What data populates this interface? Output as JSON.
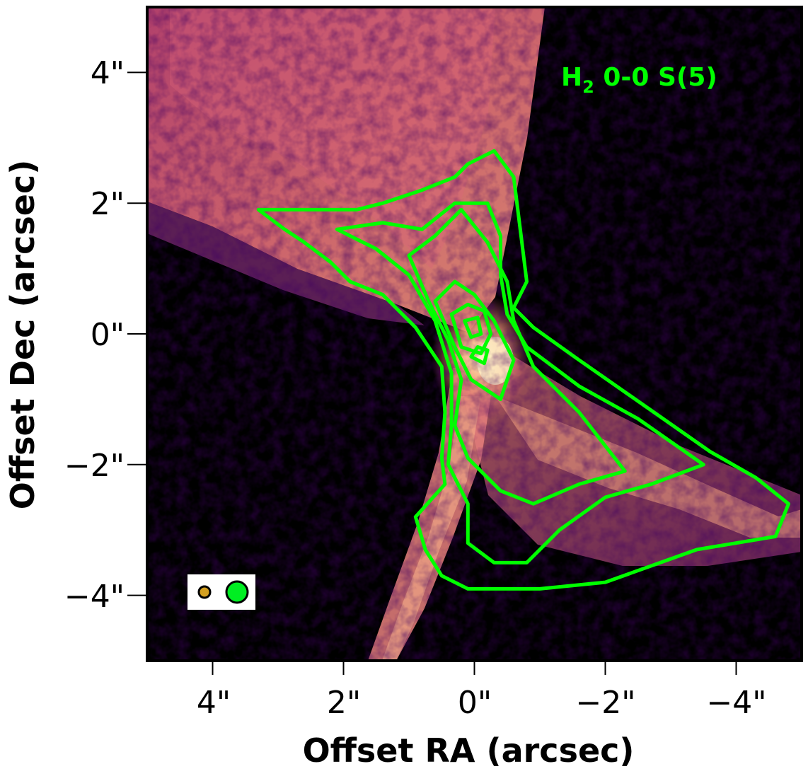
{
  "chart_data": {
    "type": "heatmap",
    "title": "",
    "xlabel": "Offset RA (arcsec)",
    "ylabel": "Offset Dec (arcsec)",
    "xlim": [
      5,
      -5
    ],
    "ylim": [
      -5,
      5
    ],
    "x_ticks": [
      4,
      2,
      0,
      -2,
      -4
    ],
    "y_ticks": [
      4,
      2,
      0,
      -2,
      -4
    ],
    "x_tick_labels": [
      "4\"",
      "2\"",
      "0\"",
      "−2\"",
      "−4\""
    ],
    "y_tick_labels": [
      "4\"",
      "2\"",
      "0\"",
      "−2\"",
      "−4\""
    ],
    "colormap": "magma",
    "contour_color": "#00ff00",
    "annotation": {
      "species": "H",
      "subscript": "2",
      "transition": " 0-0 S(5)",
      "color": "#00ff00",
      "position": "top-right"
    },
    "beams": [
      {
        "name": "image beam",
        "color": "#d4a020",
        "diameter_arcsec": 0.18
      },
      {
        "name": "contour beam",
        "color": "#00ee22",
        "diameter_arcsec": 0.32
      }
    ],
    "beam_legend_position": "bottom-left",
    "contour_levels": [
      {
        "level": 1,
        "points": [
          [
            3.3,
            1.9
          ],
          [
            2.9,
            1.6
          ],
          [
            2.6,
            1.4
          ],
          [
            2.2,
            1.1
          ],
          [
            1.9,
            0.8
          ],
          [
            1.4,
            0.6
          ],
          [
            0.9,
            0.1
          ],
          [
            0.5,
            -0.5
          ],
          [
            0.45,
            -1.2
          ],
          [
            0.5,
            -1.9
          ],
          [
            0.45,
            -2.3
          ],
          [
            0.9,
            -2.8
          ],
          [
            0.75,
            -3.3
          ],
          [
            0.5,
            -3.7
          ],
          [
            0.1,
            -3.9
          ],
          [
            -1,
            -3.9
          ],
          [
            -2,
            -3.8
          ],
          [
            -3.4,
            -3.3
          ],
          [
            -4.6,
            -3.1
          ],
          [
            -4.8,
            -2.6
          ],
          [
            -4.3,
            -2.2
          ],
          [
            -3.6,
            -1.8
          ],
          [
            -2.6,
            -1.1
          ],
          [
            -1.6,
            -0.4
          ],
          [
            -0.9,
            0.1
          ],
          [
            -0.6,
            0.4
          ],
          [
            -0.8,
            0.8
          ],
          [
            -0.7,
            1.6
          ],
          [
            -0.6,
            2.4
          ],
          [
            -0.3,
            2.8
          ],
          [
            0.1,
            2.6
          ],
          [
            0.3,
            2.4
          ],
          [
            0.8,
            2.2
          ],
          [
            1.4,
            2.0
          ],
          [
            1.8,
            1.9
          ],
          [
            2.1,
            1.9
          ],
          [
            2.6,
            1.9
          ]
        ]
      },
      {
        "level": 2,
        "points": [
          [
            2.1,
            1.6
          ],
          [
            1.5,
            1.3
          ],
          [
            1.0,
            0.9
          ],
          [
            0.6,
            0.2
          ],
          [
            0.35,
            -0.6
          ],
          [
            0.35,
            -1.4
          ],
          [
            0.4,
            -2.0
          ],
          [
            0.1,
            -2.6
          ],
          [
            0.1,
            -3.2
          ],
          [
            -0.3,
            -3.5
          ],
          [
            -0.8,
            -3.5
          ],
          [
            -1.3,
            -3.0
          ],
          [
            -2,
            -2.5
          ],
          [
            -2.7,
            -2.3
          ],
          [
            -3.5,
            -2.0
          ],
          [
            -2.5,
            -1.3
          ],
          [
            -1.6,
            -0.8
          ],
          [
            -0.8,
            -0.2
          ],
          [
            -0.5,
            0.3
          ],
          [
            -0.4,
            0.9
          ],
          [
            -0.4,
            1.5
          ],
          [
            -0.2,
            2.0
          ],
          [
            0.3,
            2.0
          ],
          [
            0.8,
            1.6
          ],
          [
            1.4,
            1.7
          ]
        ]
      },
      {
        "level": 3,
        "points": [
          [
            1.0,
            1.2
          ],
          [
            0.7,
            0.5
          ],
          [
            0.4,
            -0.1
          ],
          [
            0.2,
            -0.7
          ],
          [
            0.3,
            -1.4
          ],
          [
            0.1,
            -1.9
          ],
          [
            -0.4,
            -2.4
          ],
          [
            -0.9,
            -2.6
          ],
          [
            -1.6,
            -2.3
          ],
          [
            -2.3,
            -2.1
          ],
          [
            -1.6,
            -1.2
          ],
          [
            -0.9,
            -0.5
          ],
          [
            -0.6,
            0.2
          ],
          [
            -0.5,
            0.8
          ],
          [
            -0.2,
            1.4
          ],
          [
            0.2,
            1.9
          ],
          [
            0.6,
            1.5
          ]
        ]
      },
      {
        "level": 4,
        "points": [
          [
            0.6,
            0.5
          ],
          [
            0.3,
            -0.2
          ],
          [
            0.05,
            -0.7
          ],
          [
            -0.4,
            -1.0
          ],
          [
            -0.6,
            -0.4
          ],
          [
            -0.3,
            0.2
          ],
          [
            0.0,
            0.6
          ],
          [
            0.3,
            0.8
          ]
        ]
      },
      {
        "level": 5,
        "points": [
          [
            0.35,
            0.3
          ],
          [
            0.2,
            -0.2
          ],
          [
            -0.1,
            -0.3
          ],
          [
            -0.25,
            0.0
          ],
          [
            -0.15,
            0.35
          ],
          [
            0.1,
            0.45
          ]
        ]
      },
      {
        "level": 6,
        "points": [
          [
            0.15,
            0.2
          ],
          [
            0.05,
            -0.05
          ],
          [
            -0.1,
            0.0
          ],
          [
            -0.05,
            0.25
          ]
        ]
      },
      {
        "level": 7,
        "points": [
          [
            0.05,
            -0.35
          ],
          [
            -0.15,
            -0.45
          ],
          [
            -0.2,
            -0.25
          ],
          [
            -0.05,
            -0.2
          ]
        ]
      }
    ]
  }
}
